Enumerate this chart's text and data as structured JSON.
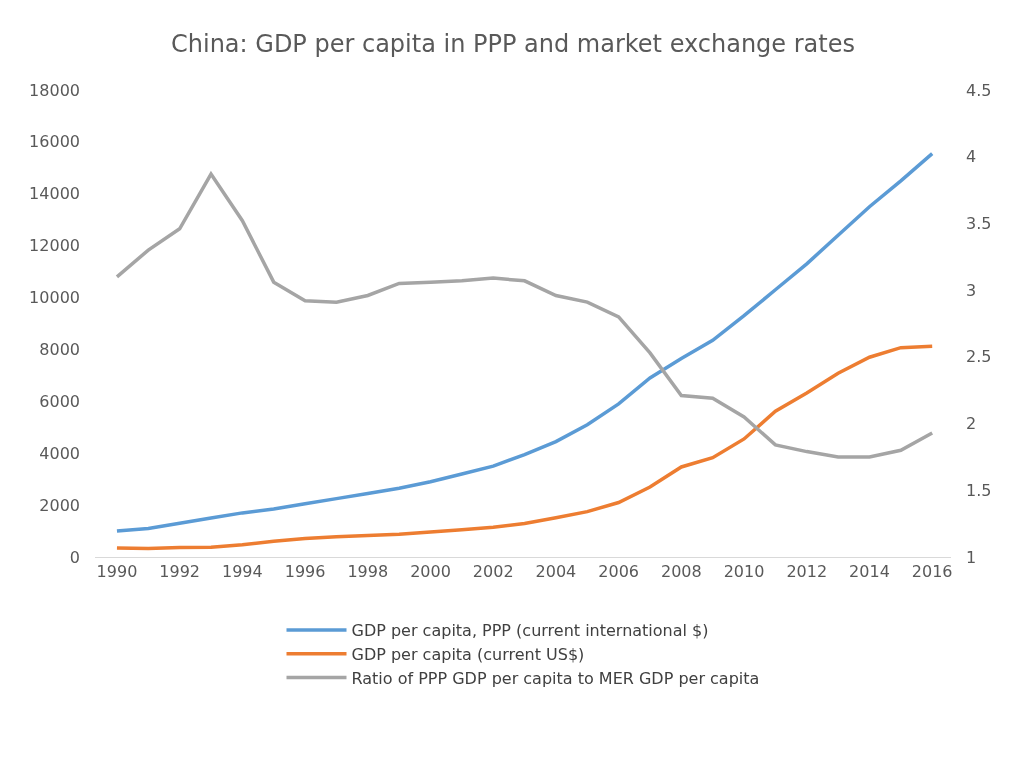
{
  "chart_data": {
    "type": "line",
    "title": "China: GDP per capita in PPP and market exchange rates",
    "x": [
      1990,
      1991,
      1992,
      1993,
      1994,
      1995,
      1996,
      1997,
      1998,
      1999,
      2000,
      2001,
      2002,
      2003,
      2004,
      2005,
      2006,
      2007,
      2008,
      2009,
      2010,
      2011,
      2012,
      2013,
      2014,
      2015,
      2016
    ],
    "series": [
      {
        "name": "GDP per capita, PPP (current international $)",
        "color": "#5b9bd5",
        "values": [
          1000,
          1100,
          1300,
          1500,
          1700,
          1850,
          2050,
          2250,
          2450,
          2650,
          2900,
          3200,
          3500,
          3950,
          4450,
          5100,
          5900,
          6900,
          7650,
          8350,
          9300,
          10300,
          11300,
          12400,
          13500,
          14500,
          15550
        ]
      },
      {
        "name": "GDP per capita (current US$)",
        "color": "#ed7d31",
        "values": [
          350,
          330,
          370,
          380,
          470,
          610,
          710,
          780,
          830,
          880,
          960,
          1050,
          1150,
          1290,
          1510,
          1750,
          2100,
          2700,
          3470,
          3830,
          4550,
          5620,
          6320,
          7080,
          7700,
          8070,
          8120
        ]
      },
      {
        "name": "Ratio of PPP GDP per capita to MER GDP per capita",
        "color": "#a5a5a5",
        "axis": "y2",
        "values": [
          3.1,
          3.3,
          3.46,
          3.87,
          3.52,
          3.06,
          2.92,
          2.91,
          2.96,
          3.05,
          3.06,
          3.07,
          3.09,
          3.07,
          2.96,
          2.91,
          2.8,
          2.53,
          2.21,
          2.19,
          2.05,
          1.84,
          1.79,
          1.75,
          1.75,
          1.8,
          1.93
        ]
      }
    ],
    "xlim": [
      1989.3,
      2016.6
    ],
    "xticks": [
      1990,
      1992,
      1994,
      1996,
      1998,
      2000,
      2002,
      2004,
      2006,
      2008,
      2010,
      2012,
      2014,
      2016
    ],
    "ylim": [
      0,
      18000
    ],
    "yticks": [
      0,
      2000,
      4000,
      6000,
      8000,
      10000,
      12000,
      14000,
      16000,
      18000
    ],
    "y2lim": [
      1,
      4.5
    ],
    "y2ticks": [
      1,
      1.5,
      2,
      2.5,
      3,
      3.5,
      4,
      4.5
    ],
    "grid": false,
    "legend": "bottom",
    "marker": "none",
    "line_style": "solid"
  }
}
